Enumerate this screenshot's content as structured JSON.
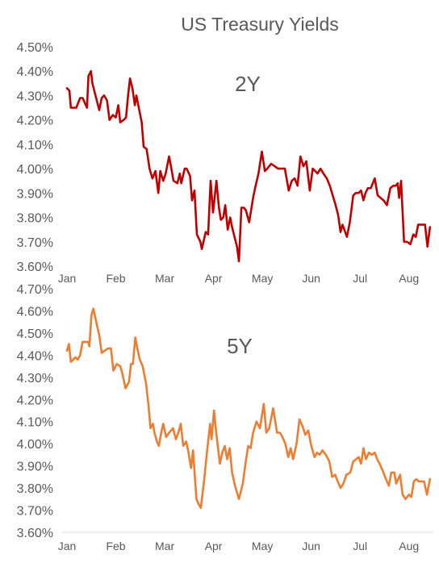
{
  "title": "US Treasury Yields",
  "chart_data": [
    {
      "type": "line",
      "label": "2Y",
      "color": "#c00000",
      "x_ticks": [
        "Jan",
        "Feb",
        "Mar",
        "Apr",
        "May",
        "Jun",
        "Jul",
        "Aug"
      ],
      "y_ticks": [
        "4.50%",
        "4.40%",
        "4.30%",
        "4.20%",
        "4.10%",
        "4.00%",
        "3.90%",
        "3.80%",
        "3.70%",
        "3.60%"
      ],
      "ylim": [
        3.6,
        4.5
      ],
      "xlim": [
        1,
        8.5
      ],
      "series": [
        {
          "x": [
            1,
            1.05,
            1.08,
            1.19,
            1.23,
            1.27,
            1.32,
            1.41,
            1.44,
            1.49,
            1.52,
            1.66,
            1.71,
            1.76,
            1.82,
            1.87,
            1.94,
            2.0,
            2.05,
            2.09,
            2.16,
            2.21,
            2.25,
            2.29,
            2.34,
            2.39,
            2.42,
            2.48,
            2.53,
            2.57,
            2.63,
            2.69,
            2.75,
            2.81,
            2.87,
            2.91,
            2.97,
            3.02,
            3.09,
            3.12,
            3.18,
            3.26,
            3.31,
            3.34,
            3.41,
            3.45,
            3.52,
            3.56,
            3.61,
            3.66,
            3.73,
            3.76,
            3.84,
            3.89,
            3.94,
            3.99,
            4.06,
            4.11,
            4.15,
            4.2,
            4.24,
            4.29,
            4.34,
            4.38,
            4.43,
            4.48,
            4.52,
            4.57,
            4.62,
            4.66,
            4.73,
            4.81,
            4.85,
            4.92,
            4.99,
            5.05,
            5.1,
            5.18,
            5.25,
            5.32,
            5.39,
            5.46,
            5.54,
            5.6,
            5.66,
            5.72,
            5.78,
            5.84,
            5.9,
            5.97,
            6.03,
            6.08,
            6.13,
            6.19,
            6.25,
            6.32,
            6.38,
            6.44,
            6.5,
            6.55,
            6.6,
            6.64,
            6.73,
            6.79,
            6.86,
            6.91,
            6.97,
            7.02,
            7.07,
            7.11,
            7.16,
            7.22,
            7.3,
            7.36,
            7.42,
            7.48,
            7.55,
            7.62,
            7.68,
            7.73,
            7.77,
            7.8,
            7.84,
            7.9,
            7.96,
            8.03,
            8.09,
            8.14,
            8.19,
            8.26,
            8.33,
            8.38,
            8.43
          ],
          "values": [
            4.33,
            4.32,
            4.25,
            4.25,
            4.27,
            4.29,
            4.29,
            4.25,
            4.38,
            4.4,
            4.35,
            4.24,
            4.29,
            4.3,
            4.28,
            4.2,
            4.22,
            4.21,
            4.26,
            4.19,
            4.2,
            4.21,
            4.3,
            4.37,
            4.33,
            4.26,
            4.3,
            4.24,
            4.19,
            4.09,
            4.08,
            4.0,
            3.96,
            3.99,
            3.9,
            3.99,
            3.95,
            3.98,
            4.05,
            4.02,
            3.95,
            3.94,
            3.98,
            3.94,
            4.0,
            4.0,
            3.97,
            3.87,
            3.91,
            3.73,
            3.7,
            3.67,
            3.74,
            3.73,
            3.95,
            3.82,
            3.95,
            3.84,
            3.79,
            3.8,
            3.85,
            3.75,
            3.8,
            3.76,
            3.72,
            3.68,
            3.62,
            3.84,
            3.84,
            3.83,
            3.78,
            3.88,
            3.92,
            3.98,
            4.07,
            3.99,
            4.0,
            4.02,
            4.01,
            4.0,
            4.0,
            4.0,
            3.91,
            3.95,
            3.96,
            3.93,
            4.05,
            4.01,
            4.03,
            3.91,
            4.0,
            3.99,
            3.98,
            4.0,
            3.98,
            3.96,
            3.93,
            3.89,
            3.85,
            3.81,
            3.74,
            3.77,
            3.72,
            3.78,
            3.89,
            3.9,
            3.9,
            3.91,
            3.87,
            3.9,
            3.92,
            3.92,
            3.96,
            3.89,
            3.88,
            3.87,
            3.85,
            3.92,
            3.93,
            3.93,
            3.94,
            3.88,
            3.95,
            3.7,
            3.7,
            3.69,
            3.73,
            3.72,
            3.77,
            3.77,
            3.77,
            3.68,
            3.76
          ]
        }
      ]
    },
    {
      "type": "line",
      "label": "5Y",
      "color": "#ed7d31",
      "x_ticks": [
        "Jan",
        "Feb",
        "Mar",
        "Apr",
        "May",
        "Jun",
        "Jul",
        "Aug"
      ],
      "y_ticks": [
        "4.70%",
        "4.60%",
        "4.50%",
        "4.40%",
        "4.30%",
        "4.20%",
        "4.10%",
        "4.00%",
        "3.90%",
        "3.80%",
        "3.70%",
        "3.60%"
      ],
      "ylim": [
        3.6,
        4.7
      ],
      "xlim": [
        1,
        8.5
      ],
      "series": [
        {
          "x": [
            1,
            1.04,
            1.08,
            1.13,
            1.17,
            1.22,
            1.27,
            1.32,
            1.39,
            1.43,
            1.46,
            1.5,
            1.54,
            1.6,
            1.66,
            1.71,
            1.77,
            1.84,
            1.9,
            1.95,
            2.02,
            2.09,
            2.13,
            2.2,
            2.27,
            2.31,
            2.35,
            2.4,
            2.44,
            2.49,
            2.55,
            2.62,
            2.67,
            2.71,
            2.76,
            2.79,
            2.84,
            2.88,
            2.93,
            2.97,
            3.03,
            3.09,
            3.17,
            3.23,
            3.28,
            3.33,
            3.38,
            3.44,
            3.48,
            3.54,
            3.58,
            3.65,
            3.69,
            3.74,
            3.81,
            3.86,
            3.93,
            3.96,
            4.01,
            4.06,
            4.13,
            4.18,
            4.23,
            4.28,
            4.33,
            4.38,
            4.44,
            4.52,
            4.6,
            4.66,
            4.71,
            4.76,
            4.81,
            4.88,
            4.95,
            5.03,
            5.08,
            5.14,
            5.22,
            5.3,
            5.36,
            5.41,
            5.47,
            5.53,
            5.58,
            5.63,
            5.7,
            5.76,
            5.82,
            5.88,
            5.94,
            6.0,
            6.07,
            6.12,
            6.17,
            6.23,
            6.3,
            6.37,
            6.43,
            6.49,
            6.54,
            6.6,
            6.66,
            6.72,
            6.8,
            6.86,
            6.92,
            6.97,
            7.02,
            7.07,
            7.12,
            7.18,
            7.24,
            7.3,
            7.35,
            7.4,
            7.46,
            7.53,
            7.59,
            7.64,
            7.7,
            7.74,
            7.78,
            7.82,
            7.87,
            7.93,
            8.0,
            8.05,
            8.1,
            8.15,
            8.2,
            8.26,
            8.31,
            8.37,
            8.43
          ],
          "values": [
            4.42,
            4.45,
            4.37,
            4.38,
            4.39,
            4.38,
            4.4,
            4.46,
            4.46,
            4.46,
            4.44,
            4.58,
            4.61,
            4.55,
            4.49,
            4.41,
            4.42,
            4.43,
            4.43,
            4.33,
            4.36,
            4.35,
            4.32,
            4.25,
            4.28,
            4.36,
            4.36,
            4.48,
            4.43,
            4.38,
            4.35,
            4.27,
            4.17,
            4.07,
            4.09,
            4.05,
            4.01,
            3.99,
            4.05,
            4.09,
            4.03,
            4.05,
            4.07,
            4.02,
            4.05,
            4.09,
            3.99,
            4.01,
            3.97,
            3.89,
            3.97,
            3.75,
            3.73,
            3.71,
            3.84,
            3.95,
            4.09,
            4.02,
            4.15,
            4.04,
            3.91,
            3.96,
            3.99,
            3.93,
            3.98,
            3.87,
            3.81,
            3.75,
            3.82,
            3.92,
            3.99,
            3.98,
            4.05,
            4.1,
            4.07,
            4.18,
            4.05,
            4.07,
            4.16,
            4.05,
            4.05,
            4.03,
            4.0,
            3.94,
            3.98,
            3.93,
            4.0,
            4.11,
            4.08,
            4.04,
            4.06,
            3.99,
            3.94,
            3.96,
            3.95,
            3.97,
            3.95,
            3.92,
            3.85,
            3.86,
            3.83,
            3.8,
            3.82,
            3.86,
            3.87,
            3.92,
            3.93,
            3.94,
            3.91,
            3.98,
            3.93,
            3.96,
            3.95,
            3.96,
            3.93,
            3.91,
            3.88,
            3.84,
            3.81,
            3.87,
            3.87,
            3.82,
            3.84,
            3.86,
            3.77,
            3.75,
            3.77,
            3.76,
            3.83,
            3.84,
            3.83,
            3.83,
            3.83,
            3.77,
            3.84
          ]
        }
      ]
    }
  ]
}
